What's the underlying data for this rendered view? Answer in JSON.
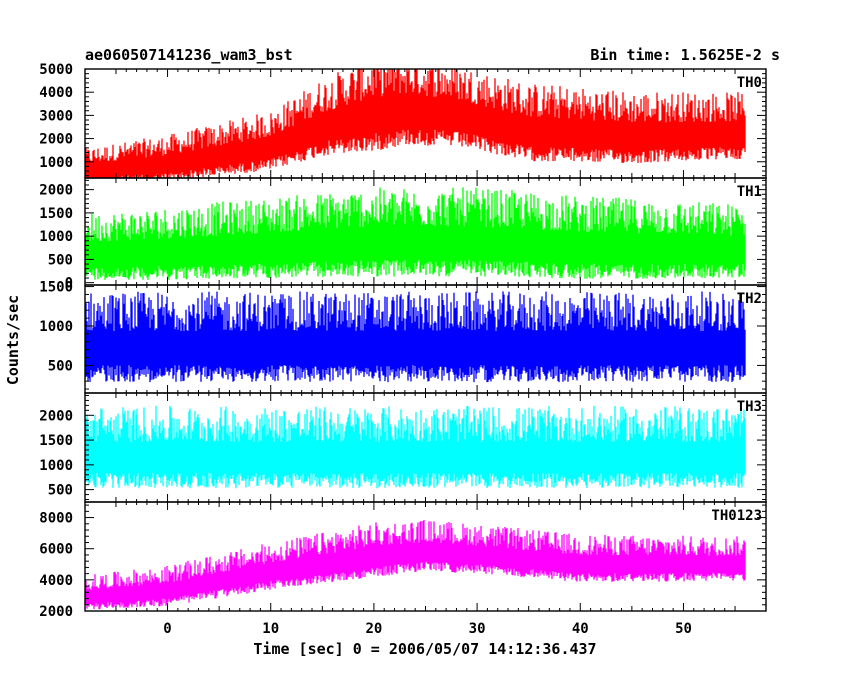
{
  "chart_data": {
    "type": "line",
    "title_left": "ae060507141236_wam3_bst",
    "title_right": "Bin time: 1.5625E-2 s",
    "xlabel": "Time [sec] 0 = 2006/05/07 14:12:36.437",
    "ylabel": "Counts/sec",
    "xlim": [
      -8,
      58
    ],
    "x_ticks": [
      0,
      10,
      20,
      30,
      40,
      50
    ],
    "x_data_range": [
      -8,
      56
    ],
    "grid": false,
    "panels": [
      {
        "name": "TH0",
        "color": "#ff0000",
        "ylim": [
          300,
          5000
        ],
        "y_ticks": [
          1000,
          2000,
          3000,
          4000,
          5000
        ],
        "trend": {
          "x": [
            -8,
            0,
            10,
            15,
            20,
            23,
            28,
            35,
            45,
            56
          ],
          "y": [
            600,
            900,
            1600,
            2500,
            3000,
            3200,
            3000,
            2300,
            2100,
            2200
          ]
        },
        "spread": {
          "x": [
            -8,
            10,
            20,
            30,
            56
          ],
          "y": [
            500,
            800,
            1300,
            1100,
            900
          ]
        },
        "floor": 300
      },
      {
        "name": "TH1",
        "color": "#00ff00",
        "ylim": [
          -50,
          2250
        ],
        "y_ticks": [
          0,
          500,
          1000,
          1500,
          2000
        ],
        "trend": {
          "x": [
            -8,
            0,
            10,
            20,
            30,
            40,
            56
          ],
          "y": [
            600,
            650,
            750,
            850,
            850,
            750,
            700
          ]
        },
        "spread": {
          "x": [
            -8,
            20,
            30,
            56
          ],
          "y": [
            450,
            600,
            600,
            500
          ]
        },
        "floor": 0
      },
      {
        "name": "TH2",
        "color": "#0000ff",
        "ylim": [
          150,
          1520
        ],
        "y_ticks": [
          500,
          1000,
          1500
        ],
        "trend": {
          "x": [
            -8,
            56
          ],
          "y": [
            720,
            720
          ]
        },
        "spread": {
          "x": [
            -8,
            56
          ],
          "y": [
            360,
            360
          ]
        },
        "floor": 200
      },
      {
        "name": "TH3",
        "color": "#00ffff",
        "ylim": [
          250,
          2450
        ],
        "y_ticks": [
          500,
          1000,
          1500,
          2000
        ],
        "trend": {
          "x": [
            -8,
            56
          ],
          "y": [
            1150,
            1150
          ]
        },
        "spread": {
          "x": [
            -8,
            56
          ],
          "y": [
            520,
            520
          ]
        },
        "floor": 300
      },
      {
        "name": "TH0123",
        "color": "#ff00ff",
        "ylim": [
          2000,
          9000
        ],
        "y_ticks": [
          2000,
          4000,
          6000,
          8000
        ],
        "trend": {
          "x": [
            -8,
            0,
            10,
            20,
            25,
            30,
            40,
            56
          ],
          "y": [
            2900,
            3300,
            4500,
            5500,
            5800,
            5600,
            5000,
            5000
          ]
        },
        "spread": {
          "x": [
            -8,
            20,
            30,
            56
          ],
          "y": [
            700,
            1100,
            1000,
            900
          ]
        },
        "floor": 2050
      }
    ]
  }
}
